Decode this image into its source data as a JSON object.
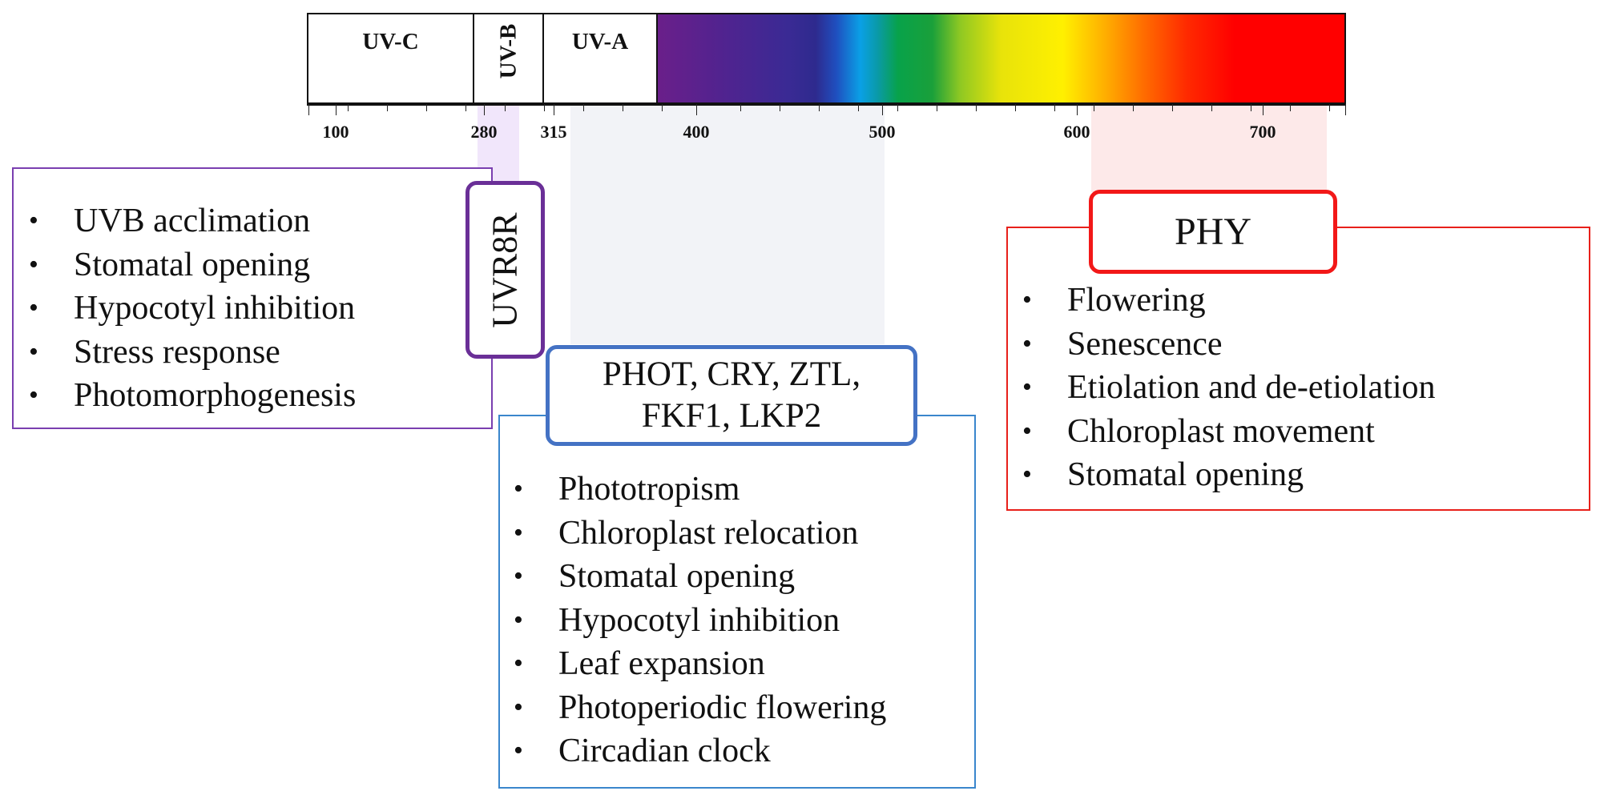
{
  "spectrum": {
    "uv_c": "UV-C",
    "uv_b": "UV-B",
    "uv_a": "UV-A",
    "colors": {
      "violet": "#6a1f8a",
      "blue": "#0aa0e6",
      "green": "#08a24a",
      "yellow": "#fff000",
      "orange": "#ff6a00",
      "red": "#ff0000"
    }
  },
  "axis": {
    "labels": [
      "100",
      "280",
      "315",
      "400",
      "500",
      "600",
      "700"
    ]
  },
  "uvr8": {
    "title": "UVR8R",
    "color": "#6a2f97",
    "items": [
      "UVB acclimation",
      "Stomatal opening",
      "Hypocotyl inhibition",
      "Stress response",
      "Photomorphogenesis"
    ]
  },
  "blue": {
    "title_line1": "PHOT, CRY, ZTL,",
    "title_line2": "FKF1, LKP2",
    "color": "#4472c4",
    "items": [
      "Phototropism",
      "Chloroplast relocation",
      "Stomatal opening",
      "Hypocotyl inhibition",
      "Leaf expansion",
      "Photoperiodic flowering",
      "Circadian clock"
    ]
  },
  "phy": {
    "title": "PHY",
    "color": "#f21818",
    "items": [
      "Flowering",
      "Senescence",
      "Etiolation and de-etiolation",
      "Chloroplast movement",
      "Stomatal opening"
    ]
  }
}
